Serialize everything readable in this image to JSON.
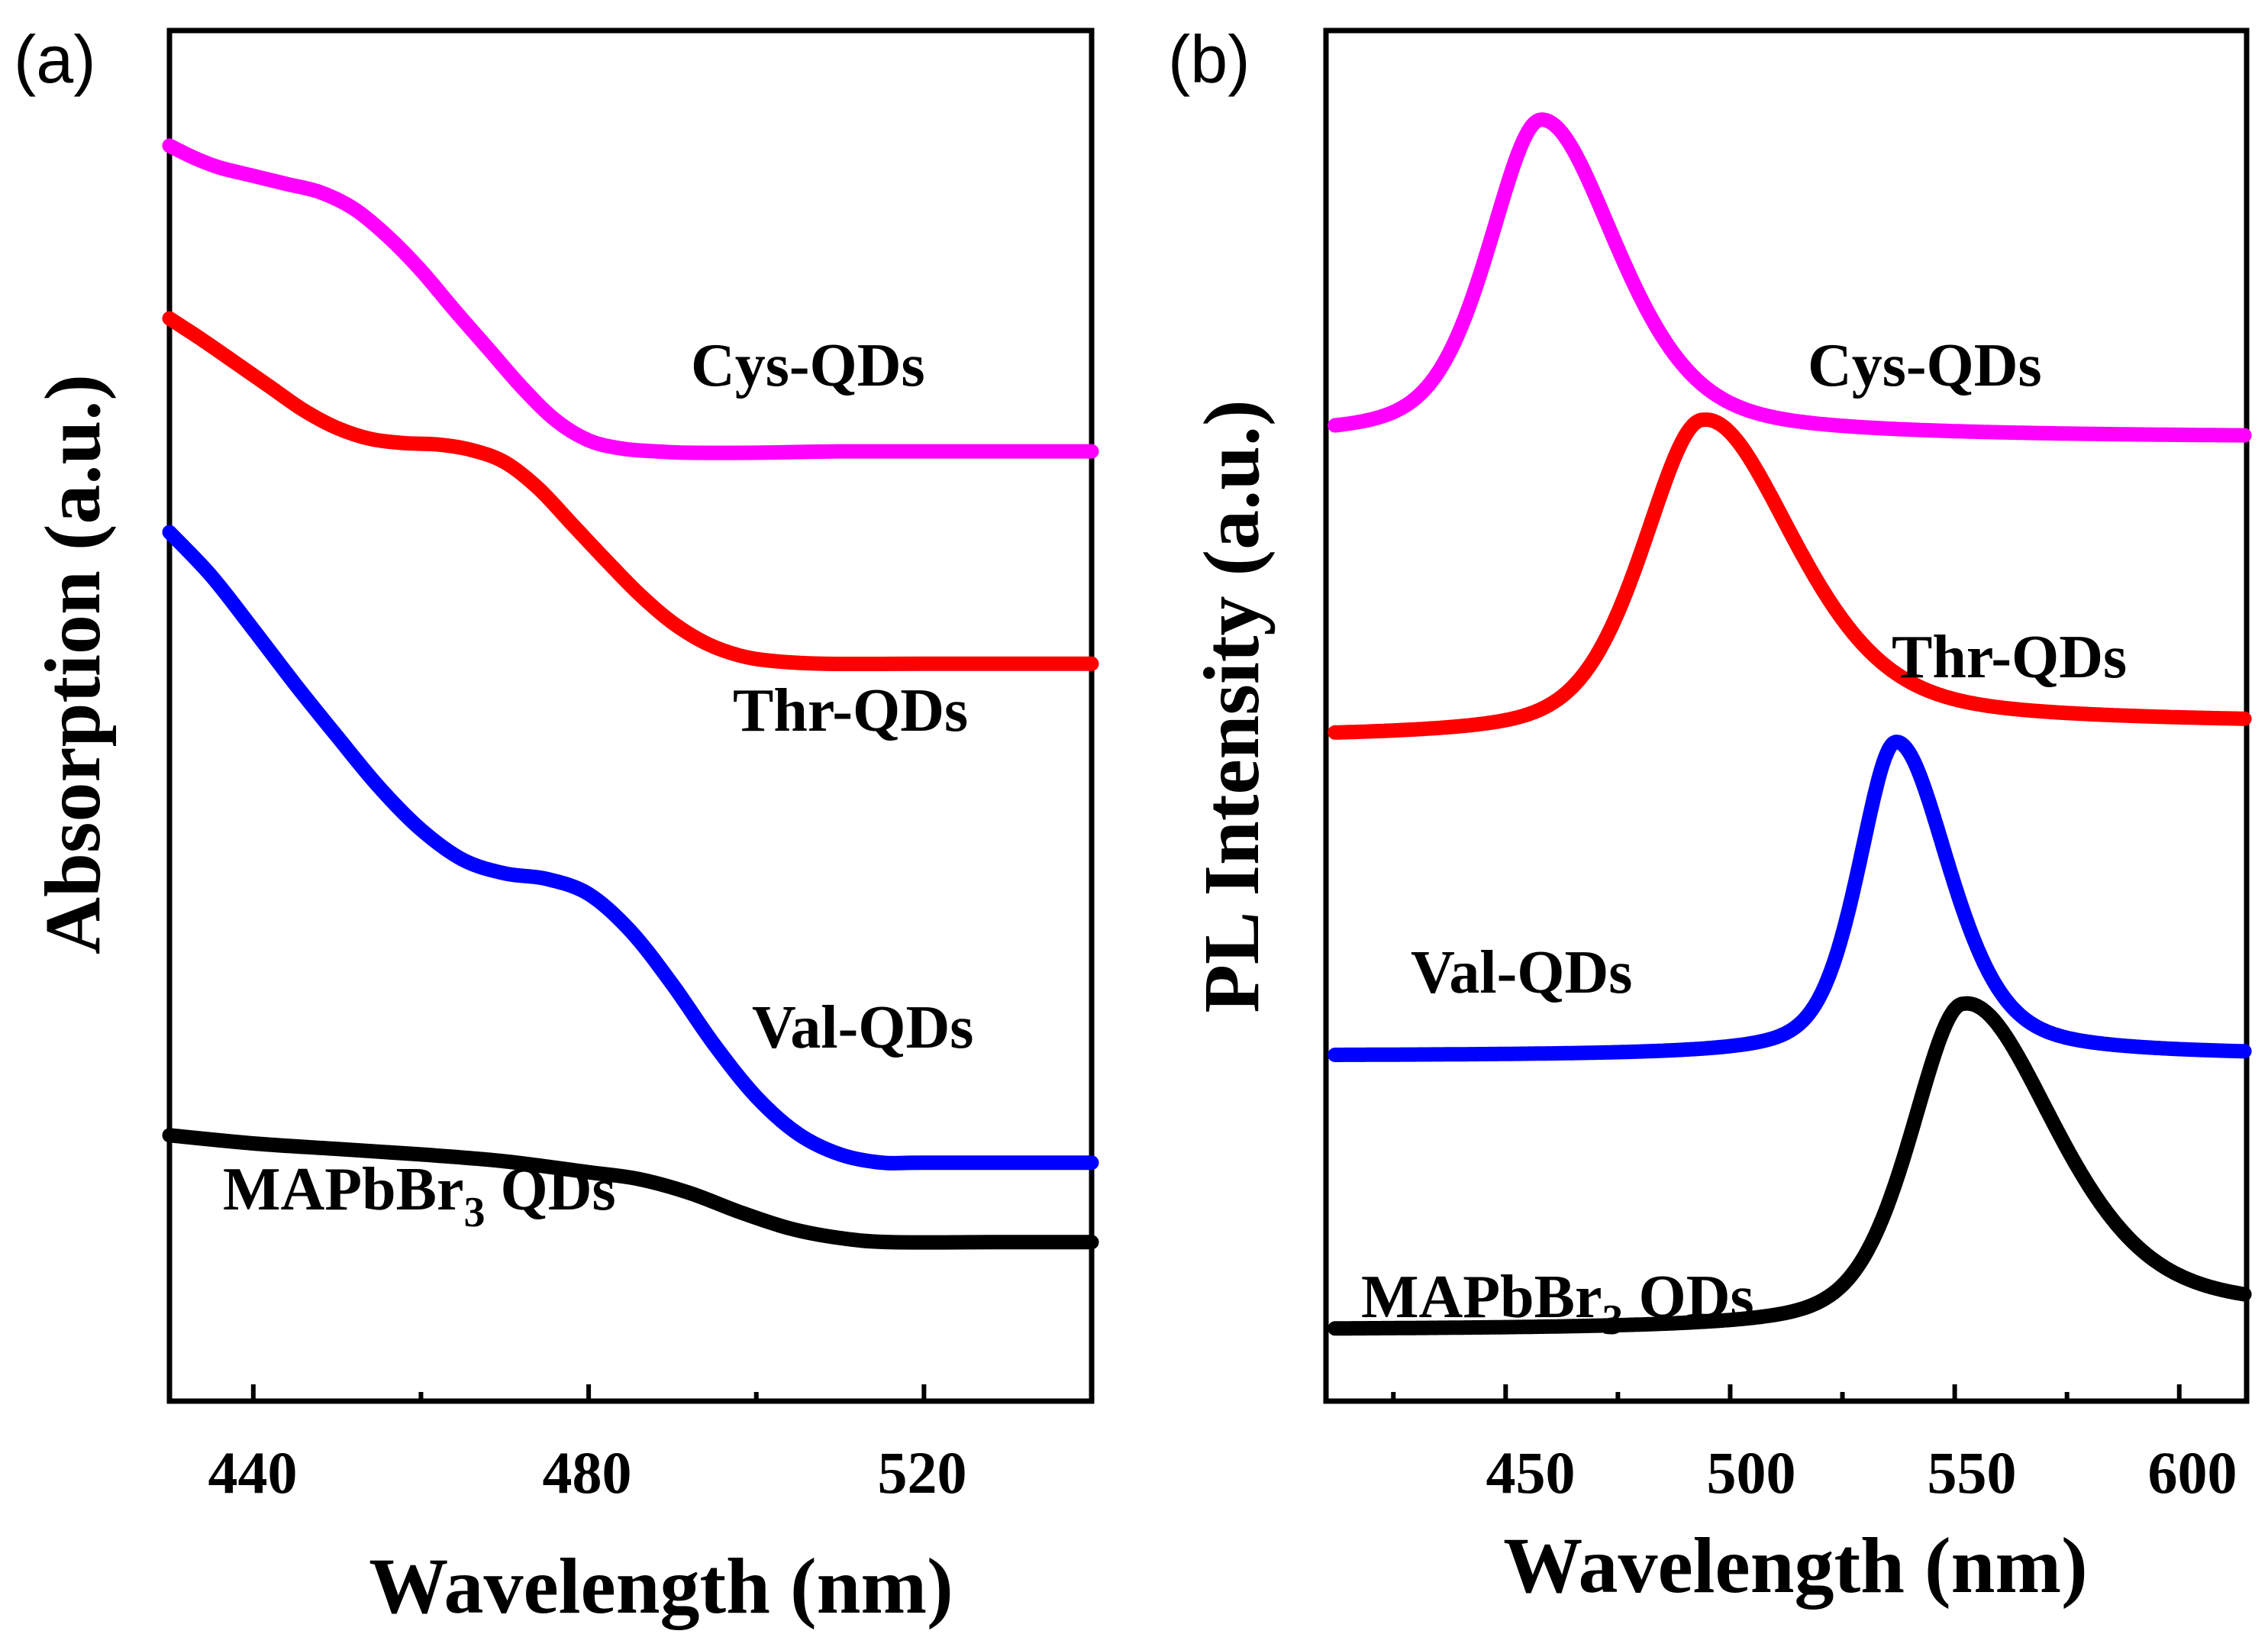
{
  "chart_data": [
    {
      "panel": "(a)",
      "type": "line",
      "xlabel": "Wavelength (nm)",
      "ylabel": "Absorption (a.u.)",
      "xlim": [
        430,
        540
      ],
      "ylim": [
        0,
        1
      ],
      "x_ticks": [
        440,
        480,
        520
      ],
      "minor_x_ticks": [
        460,
        500
      ],
      "y_ticks_shown": false,
      "series": [
        {
          "name": "Cys-QDs",
          "color": "#ff00ff",
          "label": "Cys-QDs",
          "points": [
            [
              430,
              0.916
            ],
            [
              433,
              0.907
            ],
            [
              436,
              0.9
            ],
            [
              440,
              0.894
            ],
            [
              444,
              0.888
            ],
            [
              448,
              0.882
            ],
            [
              452,
              0.87
            ],
            [
              456,
              0.85
            ],
            [
              460,
              0.825
            ],
            [
              464,
              0.796
            ],
            [
              468,
              0.768
            ],
            [
              472,
              0.74
            ],
            [
              476,
              0.716
            ],
            [
              480,
              0.701
            ],
            [
              484,
              0.695
            ],
            [
              488,
              0.693
            ],
            [
              492,
              0.692
            ],
            [
              500,
              0.692
            ],
            [
              510,
              0.693
            ],
            [
              520,
              0.693
            ],
            [
              530,
              0.693
            ],
            [
              540,
              0.693
            ]
          ]
        },
        {
          "name": "Thr-QDs",
          "color": "#ff0000",
          "label": "Thr-QDs",
          "points": [
            [
              430,
              0.79
            ],
            [
              434,
              0.774
            ],
            [
              438,
              0.757
            ],
            [
              442,
              0.74
            ],
            [
              446,
              0.723
            ],
            [
              450,
              0.71
            ],
            [
              454,
              0.702
            ],
            [
              458,
              0.699
            ],
            [
              462,
              0.698
            ],
            [
              466,
              0.694
            ],
            [
              470,
              0.685
            ],
            [
              474,
              0.666
            ],
            [
              478,
              0.64
            ],
            [
              482,
              0.614
            ],
            [
              486,
              0.589
            ],
            [
              490,
              0.568
            ],
            [
              494,
              0.553
            ],
            [
              498,
              0.544
            ],
            [
              502,
              0.54
            ],
            [
              508,
              0.538
            ],
            [
              520,
              0.538
            ],
            [
              540,
              0.538
            ]
          ]
        },
        {
          "name": "Val-QDs",
          "color": "#0000ff",
          "label": "Val-QDs",
          "points": [
            [
              430,
              0.634
            ],
            [
              435,
              0.602
            ],
            [
              440,
              0.563
            ],
            [
              445,
              0.523
            ],
            [
              450,
              0.485
            ],
            [
              455,
              0.448
            ],
            [
              460,
              0.417
            ],
            [
              465,
              0.395
            ],
            [
              470,
              0.385
            ],
            [
              475,
              0.381
            ],
            [
              480,
              0.37
            ],
            [
              485,
              0.343
            ],
            [
              490,
              0.304
            ],
            [
              495,
              0.26
            ],
            [
              500,
              0.222
            ],
            [
              505,
              0.195
            ],
            [
              510,
              0.18
            ],
            [
              515,
              0.174
            ],
            [
              520,
              0.174
            ],
            [
              540,
              0.174
            ]
          ]
        },
        {
          "name": "MAPbBr3 QDs",
          "color": "#000000",
          "label": "MAPbBr3 QDs",
          "points": [
            [
              430,
              0.194
            ],
            [
              440,
              0.188
            ],
            [
              450,
              0.184
            ],
            [
              460,
              0.18
            ],
            [
              470,
              0.175
            ],
            [
              480,
              0.167
            ],
            [
              486,
              0.162
            ],
            [
              492,
              0.152
            ],
            [
              498,
              0.138
            ],
            [
              504,
              0.126
            ],
            [
              510,
              0.119
            ],
            [
              516,
              0.116
            ],
            [
              528,
              0.116
            ],
            [
              540,
              0.116
            ]
          ]
        }
      ]
    },
    {
      "panel": "(b)",
      "type": "line",
      "xlabel": "Wavelength (nm)",
      "ylabel": "PL Intensity (a.u.)",
      "xlim": [
        410,
        615
      ],
      "ylim": [
        0,
        1
      ],
      "x_ticks": [
        450,
        500,
        550,
        600
      ],
      "minor_x_ticks": [
        425,
        475,
        525,
        575
      ],
      "y_ticks_shown": false,
      "series": [
        {
          "name": "Cys-QDs",
          "color": "#ff00ff",
          "label": "Cys-QDs",
          "peak_wavelength": 458,
          "baseline": 0.703,
          "peak_height": 0.232,
          "width_left": 14,
          "width_right": 20,
          "tail": 0.0
        },
        {
          "name": "Thr-QDs",
          "color": "#ff0000",
          "label": "Thr-QDs",
          "peak_wavelength": 494,
          "baseline": 0.484,
          "peak_height": 0.232,
          "width_left": 16,
          "width_right": 24,
          "tail": 0.01
        },
        {
          "name": "Val-QDs",
          "color": "#0000ff",
          "label": "Val-QDs",
          "peak_wavelength": 537,
          "baseline": 0.252,
          "peak_height": 0.229,
          "width_left": 10,
          "width_right": 14,
          "tail": 0.0
        },
        {
          "name": "MAPbBr3 QDs",
          "color": "#000000",
          "label": "MAPbBr3 QDs",
          "peak_wavelength": 552,
          "baseline": 0.052,
          "peak_height": 0.238,
          "width_left": 14,
          "width_right": 24,
          "tail": 0.012
        }
      ]
    }
  ],
  "panels": {
    "a": {
      "letter": "(a)",
      "ylabel": "Absorption (a.u.)",
      "xlabel": "Wavelength (nm)",
      "ticks": [
        "440",
        "480",
        "520"
      ],
      "labels": {
        "cys": "Cys-QDs",
        "thr": "Thr-QDs",
        "val": "Val-QDs",
        "ma_main": "MAPbBr",
        "ma_sub": "3",
        "ma_tail": " QDs"
      }
    },
    "b": {
      "letter": "(b)",
      "ylabel": "PL Intensity (a.u.)",
      "xlabel": "Wavelength (nm)",
      "ticks": [
        "450",
        "500",
        "550",
        "600"
      ],
      "labels": {
        "cys": "Cys-QDs",
        "thr": "Thr-QDs",
        "val": "Val-QDs",
        "ma_main": "MAPbBr",
        "ma_sub": "3",
        "ma_tail": " QDs"
      }
    }
  }
}
